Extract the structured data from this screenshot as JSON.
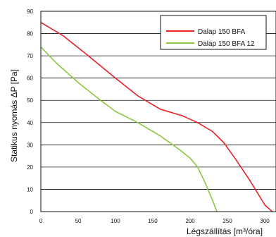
{
  "chart_data": {
    "type": "line",
    "xlabel": "Légszállítás [m³/óra]",
    "ylabel": "Statikus nyomás ΔP [Pa]",
    "xlim": [
      0,
      315
    ],
    "ylim": [
      0,
      90
    ],
    "x_ticks": [
      "0",
      "50",
      "100",
      "150",
      "200",
      "250",
      "300"
    ],
    "y_ticks": [
      "0",
      "10",
      "20",
      "30",
      "40",
      "50",
      "60",
      "70",
      "80",
      "90"
    ],
    "grid": "horizontal",
    "legend_position": "top-right",
    "series": [
      {
        "name": "Dalap 150 BFA",
        "color": "#e8202a",
        "points": [
          [
            0,
            85
          ],
          [
            30,
            79
          ],
          [
            60,
            71
          ],
          [
            100,
            60
          ],
          [
            130,
            52
          ],
          [
            160,
            46
          ],
          [
            190,
            43
          ],
          [
            210,
            40
          ],
          [
            230,
            36
          ],
          [
            245,
            31
          ],
          [
            260,
            24
          ],
          [
            280,
            14
          ],
          [
            300,
            3
          ],
          [
            310,
            0
          ]
        ]
      },
      {
        "name": "Dalap 150 BFA 12",
        "color": "#8dc63f",
        "points": [
          [
            0,
            74
          ],
          [
            20,
            67
          ],
          [
            50,
            58
          ],
          [
            80,
            50
          ],
          [
            100,
            45
          ],
          [
            130,
            40
          ],
          [
            160,
            34
          ],
          [
            185,
            28
          ],
          [
            200,
            24
          ],
          [
            210,
            20
          ],
          [
            220,
            13
          ],
          [
            230,
            5
          ],
          [
            236,
            0
          ]
        ]
      }
    ]
  }
}
